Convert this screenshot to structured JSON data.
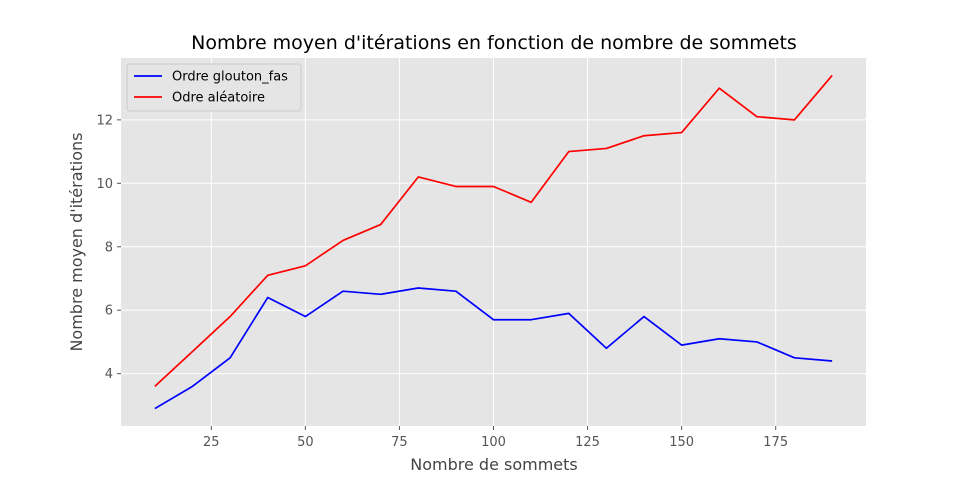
{
  "chart_data": {
    "type": "line",
    "title": "Nombre moyen d'itérations en fonction de nombre de sommets",
    "xlabel": "Nombre de sommets",
    "ylabel": "Nombre moyen d'itérations",
    "x": [
      10,
      20,
      30,
      40,
      50,
      60,
      70,
      80,
      90,
      100,
      110,
      120,
      130,
      140,
      150,
      160,
      170,
      180,
      190
    ],
    "xlim": [
      1,
      199
    ],
    "ylim": [
      2.35,
      13.95
    ],
    "xticks": [
      25,
      50,
      75,
      100,
      125,
      150,
      175
    ],
    "yticks": [
      4,
      6,
      8,
      10,
      12
    ],
    "grid": true,
    "legend_position": "top-left",
    "background": "#e5e5e5",
    "series": [
      {
        "name": "Ordre glouton_fas",
        "color": "#0000ff",
        "values": [
          2.9,
          3.6,
          4.5,
          6.4,
          5.8,
          6.6,
          6.5,
          6.7,
          6.6,
          5.7,
          5.7,
          5.9,
          4.8,
          5.8,
          4.9,
          5.1,
          5.0,
          4.5,
          4.4
        ]
      },
      {
        "name": "Odre aléatoire",
        "color": "#ff0000",
        "values": [
          3.6,
          4.7,
          5.8,
          7.1,
          7.4,
          8.2,
          8.7,
          10.2,
          9.9,
          9.9,
          9.4,
          11.0,
          11.1,
          11.5,
          11.6,
          13.0,
          12.1,
          12.0,
          13.4
        ]
      }
    ]
  }
}
